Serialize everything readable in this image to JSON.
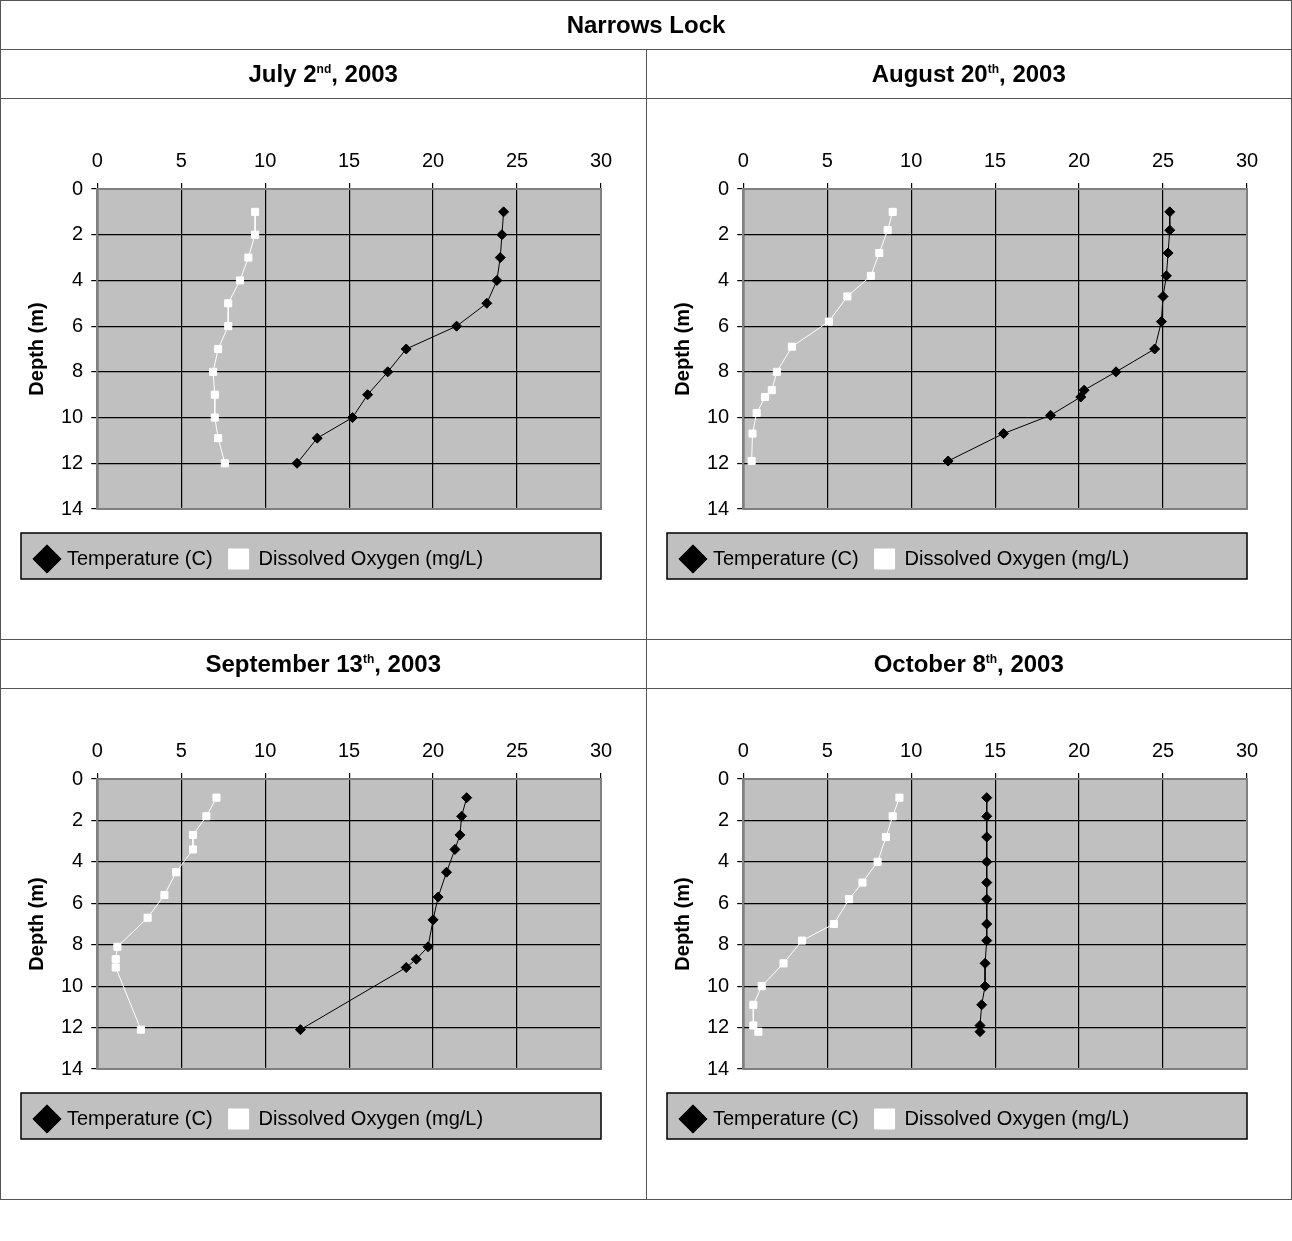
{
  "chart_data": [
    {
      "type": "line",
      "title": "July 2$^{nd}$, 2003",
      "annotations": [
        "Narrows Lock"
      ],
      "ylabel": "Depth (m)",
      "xlim": [
        0,
        30
      ],
      "xticks": [
        0,
        5,
        10,
        15,
        20,
        25,
        30
      ],
      "ylim": [
        14,
        0
      ],
      "yticks": [
        0,
        2,
        4,
        6,
        8,
        10,
        12,
        14
      ],
      "grid": true,
      "legend": "bottom",
      "series": [
        {
          "name": "Temperature (C)",
          "color": "#000000",
          "marker": "diamond",
          "x": [
            24.2,
            24.1,
            24.0,
            23.8,
            23.2,
            21.4,
            18.4,
            17.3,
            16.1,
            15.2,
            13.1,
            11.9
          ],
          "values": [
            1,
            2,
            3,
            4,
            5,
            6,
            7,
            8,
            9,
            10,
            10.9,
            12
          ]
        },
        {
          "name": "Dissolved Oxygen (mg/L)",
          "color": "#ffffff",
          "marker": "square",
          "x": [
            9.4,
            9.4,
            9.0,
            8.5,
            7.8,
            7.8,
            7.2,
            6.9,
            7.0,
            7.0,
            7.2,
            7.6
          ],
          "values": [
            1,
            2,
            3,
            4,
            5,
            6,
            7,
            8,
            9,
            10,
            10.9,
            12
          ]
        }
      ]
    },
    {
      "type": "line",
      "title": "August 20$^{th}$, 2003",
      "ylabel": "Depth (m)",
      "xlim": [
        0,
        30
      ],
      "xticks": [
        0,
        5,
        10,
        15,
        20,
        25,
        30
      ],
      "ylim": [
        14,
        0
      ],
      "yticks": [
        0,
        2,
        4,
        6,
        8,
        10,
        12,
        14
      ],
      "grid": true,
      "legend": "bottom",
      "series": [
        {
          "name": "Temperature (C)",
          "color": "#000000",
          "marker": "diamond",
          "x": [
            25.4,
            25.4,
            25.3,
            25.2,
            25.0,
            24.9,
            24.5,
            22.2,
            20.3,
            20.1,
            18.3,
            15.5,
            12.2
          ],
          "values": [
            1,
            1.8,
            2.8,
            3.8,
            4.7,
            5.8,
            7,
            8,
            8.8,
            9.1,
            9.9,
            10.7,
            11.9
          ]
        },
        {
          "name": "Dissolved Oxygen (mg/L)",
          "color": "#ffffff",
          "marker": "square",
          "x": [
            8.9,
            8.6,
            8.1,
            7.6,
            6.2,
            5.1,
            2.9,
            2.0,
            1.7,
            1.3,
            0.8,
            0.55,
            0.5
          ],
          "values": [
            1,
            1.8,
            2.8,
            3.8,
            4.7,
            5.8,
            6.9,
            8,
            8.8,
            9.1,
            9.8,
            10.7,
            11.9
          ]
        }
      ]
    },
    {
      "type": "line",
      "title": "September 13$^{th}$, 2003",
      "ylabel": "Depth (m)",
      "xlim": [
        0,
        30
      ],
      "xticks": [
        0,
        5,
        10,
        15,
        20,
        25,
        30
      ],
      "ylim": [
        14,
        0
      ],
      "yticks": [
        0,
        2,
        4,
        6,
        8,
        10,
        12,
        14
      ],
      "grid": true,
      "legend": "bottom",
      "series": [
        {
          "name": "Temperature (C)",
          "color": "#000000",
          "marker": "diamond",
          "x": [
            22.0,
            21.7,
            21.6,
            21.3,
            20.8,
            20.3,
            20.0,
            19.7,
            19.0,
            18.4,
            12.1
          ],
          "values": [
            0.9,
            1.8,
            2.7,
            3.4,
            4.5,
            5.7,
            6.8,
            8.1,
            8.7,
            9.1,
            12.1
          ]
        },
        {
          "name": "Dissolved Oxygen (mg/L)",
          "color": "#ffffff",
          "marker": "square",
          "x": [
            7.1,
            6.5,
            5.7,
            5.7,
            4.7,
            4.0,
            3.0,
            1.2,
            1.1,
            1.1,
            2.6
          ],
          "values": [
            0.9,
            1.8,
            2.7,
            3.4,
            4.5,
            5.6,
            6.7,
            8.1,
            8.7,
            9.1,
            12.1
          ]
        }
      ]
    },
    {
      "type": "line",
      "title": "October 8$^{th}$, 2003",
      "ylabel": "Depth (m)",
      "xlim": [
        0,
        30
      ],
      "xticks": [
        0,
        5,
        10,
        15,
        20,
        25,
        30
      ],
      "ylim": [
        14,
        0
      ],
      "yticks": [
        0,
        2,
        4,
        6,
        8,
        10,
        12,
        14
      ],
      "grid": true,
      "legend": "bottom",
      "series": [
        {
          "name": "Temperature (C)",
          "color": "#000000",
          "marker": "diamond",
          "x": [
            14.5,
            14.5,
            14.5,
            14.5,
            14.5,
            14.5,
            14.5,
            14.5,
            14.4,
            14.4,
            14.2,
            14.1,
            14.1
          ],
          "values": [
            0.9,
            1.8,
            2.8,
            4,
            5,
            5.8,
            7,
            7.8,
            8.9,
            10,
            10.9,
            11.9,
            12.2
          ]
        },
        {
          "name": "Dissolved Oxygen (mg/L)",
          "color": "#ffffff",
          "marker": "square",
          "x": [
            9.3,
            8.9,
            8.5,
            8.0,
            7.1,
            6.3,
            5.4,
            3.5,
            2.4,
            1.1,
            0.6,
            0.6,
            0.9
          ],
          "values": [
            0.9,
            1.8,
            2.8,
            4,
            5,
            5.8,
            7,
            7.8,
            8.9,
            10,
            10.9,
            11.9,
            12.2
          ]
        }
      ]
    }
  ]
}
